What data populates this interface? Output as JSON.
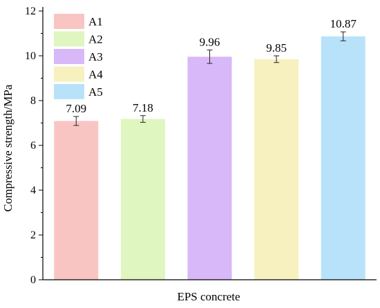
{
  "chart_data": {
    "type": "bar",
    "title": "",
    "xlabel": "EPS concrete",
    "ylabel": "Compressive strength/MPa",
    "ylim": [
      0,
      12
    ],
    "yticks": [
      0,
      2,
      4,
      6,
      8,
      10,
      12
    ],
    "grid": false,
    "legend_position": "top-left",
    "categories": [
      "A1",
      "A2",
      "A3",
      "A4",
      "A5"
    ],
    "values": [
      7.09,
      7.18,
      9.96,
      9.85,
      10.87
    ],
    "error": [
      0.2,
      0.15,
      0.3,
      0.15,
      0.2
    ],
    "data_labels": [
      "7.09",
      "7.18",
      "9.96",
      "9.85",
      "10.87"
    ],
    "colors": [
      "#f9c5c3",
      "#dff6c0",
      "#d8b8f8",
      "#f6f1bf",
      "#b8e2f9"
    ]
  }
}
